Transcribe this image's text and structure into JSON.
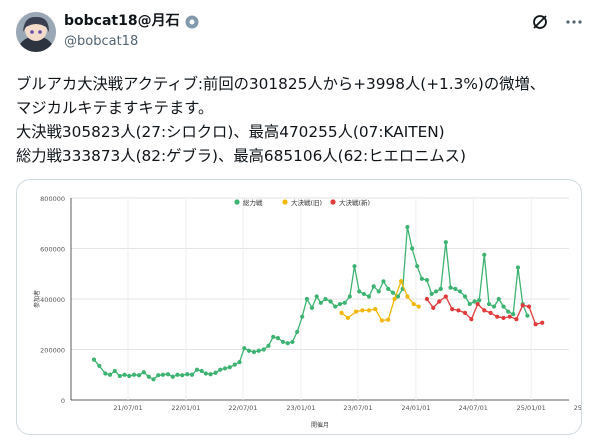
{
  "user": {
    "display_name": "bobcat18@月石",
    "handle": "@bobcat18"
  },
  "icons": {
    "verified": "verified-gear-icon",
    "grok": "grok-icon",
    "more": "more-icon"
  },
  "tweet": {
    "lines": [
      "ブルアカ大決戦アクティブ:前回の301825人から+3998人(+1.3%)の微増、",
      "マジカルキテますキテます。",
      "大決戦305823人(27:シロクロ)、最高470255人(07:KAITEN)",
      "総力戦333873人(82:ゲブラ)、最高685106人(62:ヒエロニムス)"
    ]
  },
  "colors": {
    "green": "#3cb371",
    "yellow": "#f2b705",
    "red": "#e03a3a"
  },
  "chart_data": {
    "type": "line",
    "xlabel": "開催月",
    "ylabel": "参加者",
    "ylim": [
      0,
      800000
    ],
    "yticks": [
      "0",
      "200000",
      "400000",
      "600000",
      "800000"
    ],
    "xticks": [
      "21/07/01",
      "22/01/01",
      "22/07/01",
      "23/01/01",
      "23/07/01",
      "24/01/01",
      "24/07/01",
      "25/01/01",
      "25/07/01"
    ],
    "legend_position": "top-center",
    "grid": true,
    "series": [
      {
        "name": "総力戦",
        "color": "#3cb371",
        "points": [
          [
            "2021-03-15",
            160000
          ],
          [
            "2021-04-01",
            135000
          ],
          [
            "2021-04-20",
            105000
          ],
          [
            "2021-05-05",
            100000
          ],
          [
            "2021-05-20",
            115000
          ],
          [
            "2021-06-05",
            95000
          ],
          [
            "2021-06-20",
            100000
          ],
          [
            "2021-07-05",
            95000
          ],
          [
            "2021-07-20",
            100000
          ],
          [
            "2021-08-05",
            98000
          ],
          [
            "2021-08-20",
            110000
          ],
          [
            "2021-09-05",
            92000
          ],
          [
            "2021-09-20",
            82000
          ],
          [
            "2021-10-05",
            98000
          ],
          [
            "2021-10-20",
            100000
          ],
          [
            "2021-11-05",
            102000
          ],
          [
            "2021-11-20",
            92000
          ],
          [
            "2021-12-05",
            100000
          ],
          [
            "2021-12-20",
            98000
          ],
          [
            "2022-01-05",
            102000
          ],
          [
            "2022-01-20",
            100000
          ],
          [
            "2022-02-05",
            120000
          ],
          [
            "2022-02-20",
            115000
          ],
          [
            "2022-03-05",
            105000
          ],
          [
            "2022-03-20",
            102000
          ],
          [
            "2022-04-05",
            108000
          ],
          [
            "2022-04-20",
            120000
          ],
          [
            "2022-05-05",
            125000
          ],
          [
            "2022-05-20",
            130000
          ],
          [
            "2022-06-05",
            140000
          ],
          [
            "2022-06-20",
            150000
          ],
          [
            "2022-07-05",
            205000
          ],
          [
            "2022-07-20",
            195000
          ],
          [
            "2022-08-05",
            190000
          ],
          [
            "2022-08-20",
            195000
          ],
          [
            "2022-09-05",
            200000
          ],
          [
            "2022-09-20",
            215000
          ],
          [
            "2022-10-05",
            250000
          ],
          [
            "2022-10-20",
            245000
          ],
          [
            "2022-11-05",
            230000
          ],
          [
            "2022-11-20",
            225000
          ],
          [
            "2022-12-05",
            230000
          ],
          [
            "2022-12-20",
            270000
          ],
          [
            "2023-01-05",
            330000
          ],
          [
            "2023-01-20",
            400000
          ],
          [
            "2023-02-05",
            365000
          ],
          [
            "2023-02-20",
            410000
          ],
          [
            "2023-03-05",
            385000
          ],
          [
            "2023-03-20",
            400000
          ],
          [
            "2023-04-05",
            390000
          ],
          [
            "2023-04-20",
            370000
          ],
          [
            "2023-05-05",
            380000
          ],
          [
            "2023-05-20",
            385000
          ],
          [
            "2023-06-05",
            410000
          ],
          [
            "2023-06-20",
            530000
          ],
          [
            "2023-07-05",
            430000
          ],
          [
            "2023-07-20",
            420000
          ],
          [
            "2023-08-05",
            410000
          ],
          [
            "2023-08-20",
            450000
          ],
          [
            "2023-09-05",
            430000
          ],
          [
            "2023-09-20",
            470000
          ],
          [
            "2023-10-05",
            440000
          ],
          [
            "2023-10-20",
            425000
          ],
          [
            "2023-11-05",
            410000
          ],
          [
            "2023-11-20",
            440000
          ],
          [
            "2023-12-05",
            685000
          ],
          [
            "2023-12-20",
            600000
          ],
          [
            "2024-01-05",
            530000
          ],
          [
            "2024-01-20",
            480000
          ],
          [
            "2024-02-05",
            475000
          ],
          [
            "2024-02-20",
            420000
          ],
          [
            "2024-03-05",
            430000
          ],
          [
            "2024-03-20",
            440000
          ],
          [
            "2024-04-05",
            625000
          ],
          [
            "2024-04-20",
            445000
          ],
          [
            "2024-05-05",
            440000
          ],
          [
            "2024-05-20",
            430000
          ],
          [
            "2024-06-05",
            410000
          ],
          [
            "2024-06-20",
            380000
          ],
          [
            "2024-07-05",
            390000
          ],
          [
            "2024-07-20",
            395000
          ],
          [
            "2024-08-05",
            575000
          ],
          [
            "2024-08-20",
            380000
          ],
          [
            "2024-09-05",
            370000
          ],
          [
            "2024-09-20",
            400000
          ],
          [
            "2024-10-05",
            370000
          ],
          [
            "2024-10-20",
            350000
          ],
          [
            "2024-11-05",
            340000
          ],
          [
            "2024-11-20",
            525000
          ],
          [
            "2024-12-05",
            380000
          ],
          [
            "2024-12-20",
            333873
          ]
        ]
      },
      {
        "name": "大決戦(旧)",
        "color": "#f2b705",
        "points": [
          [
            "2023-05-10",
            345000
          ],
          [
            "2023-05-30",
            325000
          ],
          [
            "2023-06-25",
            350000
          ],
          [
            "2023-07-15",
            355000
          ],
          [
            "2023-08-05",
            355000
          ],
          [
            "2023-08-25",
            360000
          ],
          [
            "2023-09-15",
            315000
          ],
          [
            "2023-10-05",
            318000
          ],
          [
            "2023-10-25",
            400000
          ],
          [
            "2023-11-15",
            470255
          ],
          [
            "2023-12-05",
            410000
          ],
          [
            "2023-12-25",
            380000
          ],
          [
            "2024-01-10",
            370000
          ]
        ]
      },
      {
        "name": "大決戦(新)",
        "color": "#e03a3a",
        "points": [
          [
            "2024-02-05",
            400000
          ],
          [
            "2024-02-25",
            365000
          ],
          [
            "2024-03-15",
            390000
          ],
          [
            "2024-04-05",
            410000
          ],
          [
            "2024-04-25",
            360000
          ],
          [
            "2024-05-15",
            355000
          ],
          [
            "2024-06-05",
            345000
          ],
          [
            "2024-06-25",
            320000
          ],
          [
            "2024-07-15",
            380000
          ],
          [
            "2024-08-05",
            355000
          ],
          [
            "2024-08-25",
            345000
          ],
          [
            "2024-09-15",
            330000
          ],
          [
            "2024-10-05",
            325000
          ],
          [
            "2024-10-25",
            330000
          ],
          [
            "2024-11-15",
            320000
          ],
          [
            "2024-12-05",
            375000
          ],
          [
            "2024-12-25",
            370000
          ],
          [
            "2025-01-15",
            300000
          ],
          [
            "2025-02-05",
            305823
          ]
        ]
      }
    ]
  }
}
